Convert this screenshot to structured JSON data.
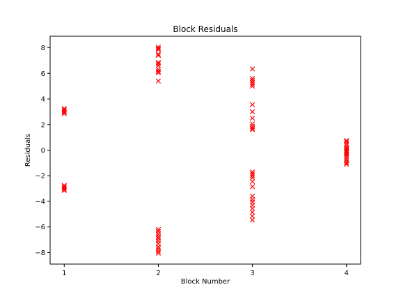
{
  "chart_data": {
    "type": "scatter",
    "title": "Block Residuals",
    "xlabel": "Block Number",
    "ylabel": "Residuals",
    "xlim": [
      0.85,
      4.15
    ],
    "ylim": [
      -8.9,
      8.9
    ],
    "xticks": [
      1,
      2,
      3,
      4
    ],
    "yticks": [
      -8,
      -6,
      -4,
      -2,
      0,
      2,
      4,
      6,
      8
    ],
    "marker": "x",
    "marker_color": "#ff0000",
    "grid": false,
    "points": [
      {
        "x": 1,
        "ys": [
          3.25,
          3.15,
          3.05,
          2.95,
          2.85,
          -2.75,
          -2.85,
          -2.95,
          -3.05,
          -3.15
        ]
      },
      {
        "x": 2,
        "ys": [
          8.05,
          7.95,
          7.85,
          7.5,
          7.4,
          6.85,
          6.75,
          6.6,
          6.3,
          6.15,
          6.05,
          5.4,
          -6.2,
          -6.35,
          -6.55,
          -6.75,
          -6.9,
          -7.1,
          -7.3,
          -7.55,
          -7.7,
          -7.9,
          -8.05
        ]
      },
      {
        "x": 3,
        "ys": [
          6.35,
          5.6,
          5.45,
          5.3,
          5.15,
          5.0,
          3.55,
          3.0,
          2.5,
          2.05,
          1.85,
          1.7,
          1.6,
          -1.7,
          -1.85,
          -2.0,
          -2.15,
          -2.45,
          -2.85,
          -3.6,
          -3.85,
          -4.05,
          -4.3,
          -4.55,
          -4.85,
          -5.15,
          -5.45
        ]
      },
      {
        "x": 4,
        "ys": [
          0.75,
          0.65,
          0.5,
          0.35,
          0.2,
          0.1,
          0.0,
          -0.1,
          -0.2,
          -0.3,
          -0.4,
          -0.55,
          -0.7,
          -0.85,
          -1.0,
          -1.1
        ]
      }
    ]
  }
}
